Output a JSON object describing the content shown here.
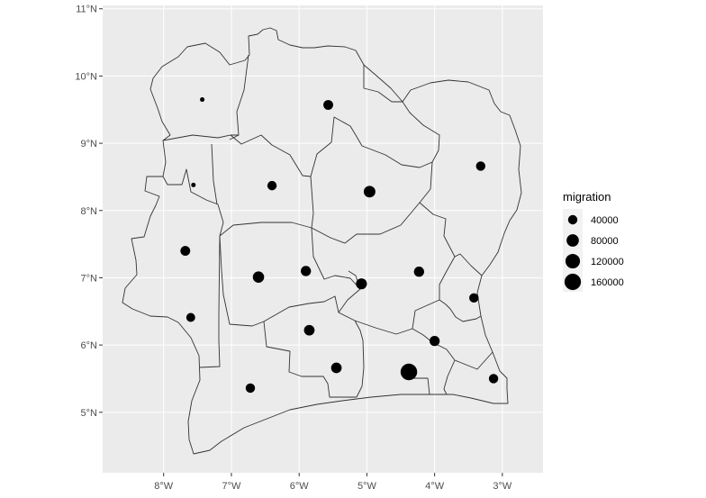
{
  "chart_data": {
    "type": "scatter",
    "title": "",
    "xlabel": "",
    "ylabel": "",
    "xlim": [
      -8.9,
      -2.4
    ],
    "ylim": [
      4.1,
      11.05
    ],
    "x_ticks": [
      -8,
      -7,
      -6,
      -5,
      -4,
      -3
    ],
    "x_tick_labels": [
      "8°W",
      "7°W",
      "6°W",
      "5°W",
      "4°W",
      "3°W"
    ],
    "y_ticks": [
      5,
      6,
      7,
      8,
      9,
      10,
      11
    ],
    "y_tick_labels": [
      "5°N",
      "6°N",
      "7°N",
      "8°N",
      "9°N",
      "10°N",
      "11°N"
    ],
    "grid": true,
    "background": "#ebebeb",
    "grid_color": "#ffffff",
    "point_color": "#000000",
    "size_legend": {
      "title": "migration",
      "values": [
        40000,
        80000,
        120000,
        160000
      ],
      "labels": [
        "40000",
        "80000",
        "120000",
        "160000"
      ],
      "position": "right"
    },
    "points": [
      {
        "lon": -7.43,
        "lat": 9.65,
        "migration": 4000
      },
      {
        "lon": -5.57,
        "lat": 9.57,
        "migration": 45000
      },
      {
        "lon": -3.32,
        "lat": 8.66,
        "migration": 40000
      },
      {
        "lon": -7.56,
        "lat": 8.38,
        "migration": 4000
      },
      {
        "lon": -6.4,
        "lat": 8.37,
        "migration": 40000
      },
      {
        "lon": -4.96,
        "lat": 8.28,
        "migration": 70000
      },
      {
        "lon": -7.68,
        "lat": 7.4,
        "migration": 45000
      },
      {
        "lon": -6.6,
        "lat": 7.01,
        "migration": 65000
      },
      {
        "lon": -5.9,
        "lat": 7.1,
        "migration": 50000
      },
      {
        "lon": -4.23,
        "lat": 7.09,
        "migration": 50000
      },
      {
        "lon": -5.08,
        "lat": 6.91,
        "migration": 60000
      },
      {
        "lon": -3.42,
        "lat": 6.7,
        "migration": 40000
      },
      {
        "lon": -7.6,
        "lat": 6.41,
        "migration": 35000
      },
      {
        "lon": -5.85,
        "lat": 6.22,
        "migration": 55000
      },
      {
        "lon": -4.0,
        "lat": 6.06,
        "migration": 50000
      },
      {
        "lon": -5.45,
        "lat": 5.66,
        "migration": 55000
      },
      {
        "lon": -4.38,
        "lat": 5.6,
        "migration": 165000
      },
      {
        "lon": -3.13,
        "lat": 5.5,
        "migration": 40000
      },
      {
        "lon": -6.72,
        "lat": 5.36,
        "migration": 40000
      }
    ]
  }
}
